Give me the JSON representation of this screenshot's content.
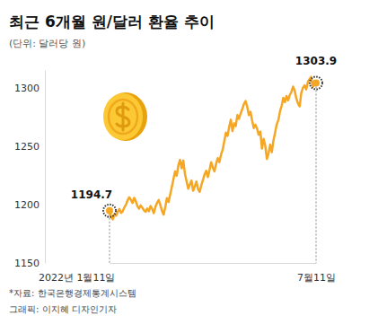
{
  "chart_data": {
    "type": "line",
    "title": "최근 6개월 원/달러 환율 추이",
    "subtitle": "(단위: 달러당 원)",
    "color": "#f5a623",
    "grid": false,
    "ylim": [
      1150,
      1315
    ],
    "yticks": [
      1150,
      1200,
      1250,
      1300
    ],
    "categories": [
      "2022년 1월11일",
      null,
      null,
      null,
      null,
      null,
      null,
      null,
      null,
      null,
      null,
      null,
      null,
      null,
      null,
      null,
      null,
      null,
      null,
      null,
      null,
      null,
      null,
      null,
      null,
      null,
      null,
      null,
      null,
      null,
      null,
      null,
      null,
      null,
      null,
      null,
      null,
      null,
      null,
      null,
      null,
      null,
      null,
      null,
      null,
      null,
      null,
      null,
      null,
      null,
      null,
      null,
      null,
      null,
      null,
      null,
      null,
      null,
      null,
      null,
      null,
      null,
      null,
      null,
      null,
      null,
      null,
      null,
      null,
      null,
      null,
      null,
      null,
      null,
      null,
      null,
      null,
      null,
      null,
      null,
      null,
      null,
      null,
      null,
      null,
      null,
      null,
      null,
      null,
      null,
      null,
      null,
      null,
      null,
      null,
      null,
      null,
      null,
      null,
      null,
      null,
      null,
      null,
      null,
      null,
      null,
      null,
      null,
      null,
      null,
      null,
      null,
      null,
      null,
      null,
      null,
      null,
      null,
      null,
      null,
      null,
      null,
      null,
      null,
      null,
      null,
      "7월11일"
    ],
    "values": [
      1194.7,
      1189.5,
      1187.3,
      1191.8,
      1190.4,
      1193.6,
      1196.2,
      1192.8,
      1194.1,
      1197.5,
      1199.8,
      1203.5,
      1206.2,
      1204.1,
      1201.3,
      1205.7,
      1202.9,
      1198.6,
      1196.4,
      1199.2,
      1197.3,
      1195.0,
      1193.8,
      1196.5,
      1194.2,
      1198.7,
      1196.3,
      1192.6,
      1197.9,
      1201.4,
      1203.8,
      1199.6,
      1194.5,
      1191.3,
      1197.8,
      1205.4,
      1202.1,
      1208.6,
      1214.9,
      1221.7,
      1228.3,
      1224.6,
      1233.5,
      1238.2,
      1231.0,
      1237.6,
      1226.4,
      1219.8,
      1213.5,
      1216.9,
      1220.4,
      1211.7,
      1215.3,
      1219.6,
      1213.2,
      1210.8,
      1216.4,
      1221.0,
      1225.7,
      1228.9,
      1223.5,
      1229.4,
      1236.1,
      1231.8,
      1228.3,
      1234.7,
      1239.6,
      1236.2,
      1242.5,
      1246.8,
      1253.9,
      1261.4,
      1258.7,
      1266.3,
      1272.5,
      1262.8,
      1269.4,
      1267.1,
      1276.5,
      1273.2,
      1277.8,
      1281.6,
      1285.9,
      1288.4,
      1283.7,
      1276.5,
      1279.3,
      1271.8,
      1265.4,
      1268.2,
      1264.9,
      1259.7,
      1262.3,
      1247.8,
      1256.1,
      1250.4,
      1238.9,
      1243.6,
      1251.2,
      1244.7,
      1254.8,
      1261.3,
      1268.5,
      1272.1,
      1279.6,
      1284.3,
      1291.2,
      1287.5,
      1292.8,
      1289.1,
      1293.7,
      1296.4,
      1300.8,
      1297.2,
      1290.5,
      1286.3,
      1283.9,
      1295.6,
      1299.8,
      1301.9,
      1298.4,
      1304.7,
      1307.2,
      1309.1,
      1300.6,
      1302.5,
      1303.9
    ],
    "annotations": [
      {
        "category": 0,
        "text": "1194.7"
      },
      {
        "category": 126,
        "text": "1303.9"
      }
    ],
    "notes": [
      "*자료: 한국은행경제통계시스템",
      "그래픽: 이지혜 디자인기자"
    ]
  }
}
